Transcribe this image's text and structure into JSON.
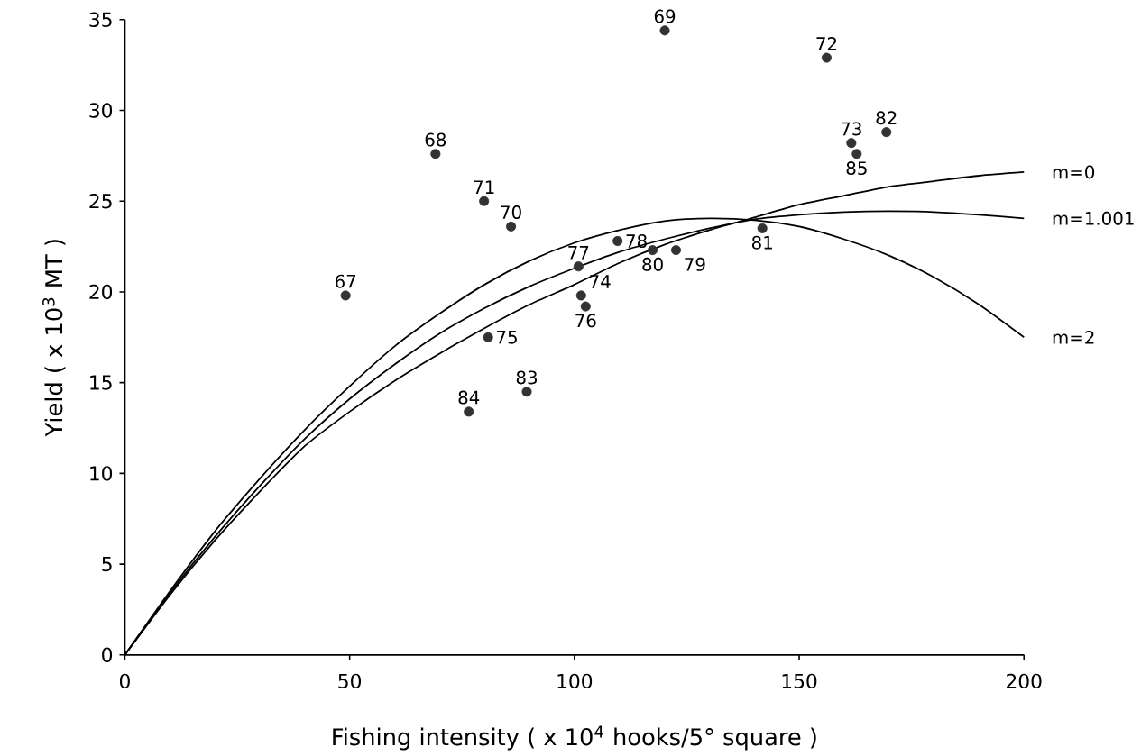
{
  "chart_data": {
    "type": "scatter",
    "xlabel": "Fishing intensity ( x 10$^{4}$ hooks/5° square )",
    "ylabel": "Yield ( x 10$^{3}$ MT )",
    "xlim": [
      0,
      200
    ],
    "ylim": [
      0,
      35
    ],
    "xticks": [
      0,
      50,
      100,
      150,
      200
    ],
    "yticks": [
      0,
      5,
      10,
      15,
      20,
      25,
      30,
      35
    ],
    "grid": false,
    "marker": "circle",
    "series": [
      {
        "color": "#333333",
        "x": [
          49.1,
          69.1,
          120.1,
          85.9,
          79.9,
          156.1,
          161.6,
          101.5,
          80.8,
          102.5,
          100.9,
          109.6,
          122.6,
          117.4,
          141.8,
          169.4,
          89.4,
          76.5,
          162.8
        ],
        "values": [
          19.8,
          27.6,
          34.4,
          23.6,
          25.0,
          32.9,
          28.2,
          19.8,
          17.5,
          19.2,
          21.4,
          22.8,
          22.3,
          22.3,
          23.5,
          28.8,
          14.5,
          13.4,
          27.6
        ]
      },
      {
        "type": "line",
        "name": "m=0",
        "color": "#000000",
        "marker": "none",
        "x": [
          0,
          10,
          20,
          30,
          40,
          50,
          60,
          70,
          80,
          90,
          100,
          110,
          120,
          130,
          140,
          150,
          160,
          170,
          180,
          190,
          200
        ],
        "values": [
          0,
          3.3,
          6.3,
          9.0,
          11.5,
          13.4,
          15.1,
          16.6,
          18.0,
          19.3,
          20.4,
          21.6,
          22.6,
          23.4,
          24.1,
          24.8,
          25.3,
          25.8,
          26.1,
          26.4,
          26.6
        ]
      },
      {
        "type": "line",
        "name": "m=1.001",
        "color": "#000000",
        "marker": "none",
        "x": [
          0,
          10,
          20,
          30,
          40,
          50,
          60,
          70,
          80,
          90,
          100,
          110,
          120,
          130,
          140,
          150,
          160,
          170,
          180,
          190,
          200
        ],
        "values": [
          0,
          3.4,
          6.5,
          9.3,
          11.9,
          14.1,
          16.0,
          17.7,
          19.1,
          20.3,
          21.3,
          22.2,
          22.9,
          23.5,
          24.0,
          24.25,
          24.4,
          24.45,
          24.4,
          24.25,
          24.05
        ]
      },
      {
        "type": "line",
        "name": "m=2",
        "color": "#000000",
        "marker": "none",
        "x": [
          0,
          10,
          20,
          30,
          40,
          50,
          60,
          70,
          80,
          90,
          100,
          110,
          120,
          130,
          140,
          150,
          160,
          170,
          180,
          190,
          200
        ],
        "values": [
          0,
          3.5,
          6.8,
          9.7,
          12.4,
          14.8,
          17.0,
          18.8,
          20.4,
          21.7,
          22.7,
          23.4,
          23.9,
          24.05,
          23.95,
          23.6,
          22.9,
          22.0,
          20.8,
          19.3,
          17.5
        ]
      }
    ],
    "annotations": [
      {
        "text": "67",
        "x": 49.1,
        "y": 19.8
      },
      {
        "text": "68",
        "x": 69.1,
        "y": 27.6
      },
      {
        "text": "69",
        "x": 120.1,
        "y": 34.4
      },
      {
        "text": "70",
        "x": 85.9,
        "y": 23.6
      },
      {
        "text": "71",
        "x": 79.9,
        "y": 25.0
      },
      {
        "text": "72",
        "x": 156.1,
        "y": 32.9
      },
      {
        "text": "73",
        "x": 161.6,
        "y": 28.2
      },
      {
        "text": "74",
        "x": 101.5,
        "y": 19.8
      },
      {
        "text": "75",
        "x": 80.8,
        "y": 17.5
      },
      {
        "text": "76",
        "x": 102.5,
        "y": 19.2
      },
      {
        "text": "77",
        "x": 100.9,
        "y": 21.4
      },
      {
        "text": "78",
        "x": 109.6,
        "y": 22.8
      },
      {
        "text": "79",
        "x": 122.6,
        "y": 22.3
      },
      {
        "text": "80",
        "x": 117.4,
        "y": 22.3
      },
      {
        "text": "81",
        "x": 141.8,
        "y": 23.5
      },
      {
        "text": "82",
        "x": 169.4,
        "y": 28.8
      },
      {
        "text": "83",
        "x": 89.4,
        "y": 14.5
      },
      {
        "text": "84",
        "x": 76.5,
        "y": 13.4
      },
      {
        "text": "85",
        "x": 162.8,
        "y": 27.6
      }
    ]
  }
}
